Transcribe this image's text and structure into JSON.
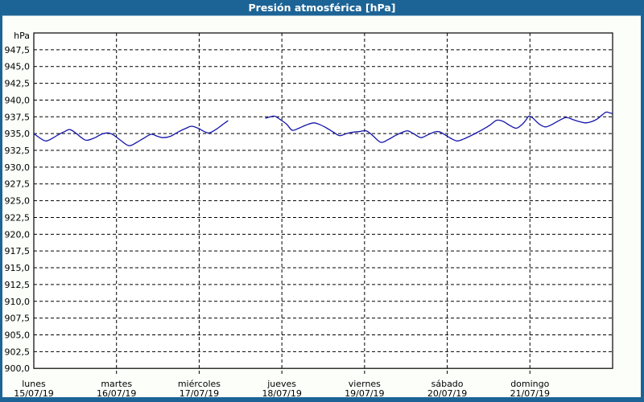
{
  "title": "Presión atmosférica [hPa]",
  "colors": {
    "titlebar": "#1D6496",
    "frame": "#1D6496",
    "panel_bg": "#FCFEFA",
    "plot_bg": "#FEFFFE",
    "grid": "#000000",
    "line": "#1414AA",
    "title_text": "#FFFFFF",
    "label_text": "#000000"
  },
  "chart_data": {
    "type": "line",
    "title": "Presión atmosférica [hPa]",
    "ylabel": "hPa",
    "ylim": [
      900,
      950
    ],
    "ytick_step": 2.5,
    "ytick_labels": [
      "947,5",
      "945,0",
      "942,5",
      "940,0",
      "937,5",
      "935,0",
      "932,5",
      "930,0",
      "927,5",
      "925,0",
      "922,5",
      "920,0",
      "917,5",
      "915,0",
      "912,5",
      "910,0",
      "907,5",
      "905,0",
      "902,5",
      "900,0"
    ],
    "xlim": [
      0,
      168
    ],
    "x_unit": "hours from lunes 00:00",
    "grid": "dashed",
    "legend_position": "none",
    "x_days": [
      {
        "name": "lunes",
        "date": "15/07/19"
      },
      {
        "name": "martes",
        "date": "16/07/19"
      },
      {
        "name": "miércoles",
        "date": "17/07/19"
      },
      {
        "name": "jueves",
        "date": "18/07/19"
      },
      {
        "name": "viernes",
        "date": "19/07/19"
      },
      {
        "name": "sábado",
        "date": "20/07/19"
      },
      {
        "name": "domingo",
        "date": "21/07/19"
      }
    ],
    "series": [
      {
        "name": "presión atmosférica",
        "color": "#1414AA",
        "unit": "hPa",
        "segments": [
          [
            [
              0,
              935.0
            ],
            [
              1.9,
              934.3
            ],
            [
              3.5,
              933.9
            ],
            [
              5.4,
              934.3
            ],
            [
              7,
              934.8
            ],
            [
              8.9,
              935.3
            ],
            [
              10.5,
              935.6
            ],
            [
              12.4,
              935.0
            ],
            [
              13.8,
              934.4
            ],
            [
              15.4,
              934.0
            ],
            [
              17.8,
              934.4
            ],
            [
              19.6,
              934.9
            ],
            [
              21.3,
              935.1
            ],
            [
              22.4,
              935.0
            ],
            [
              23.4,
              934.7
            ],
            [
              25.2,
              934.0
            ],
            [
              27.6,
              933.2
            ],
            [
              29.9,
              933.7
            ],
            [
              32.2,
              934.4
            ],
            [
              34.1,
              934.9
            ],
            [
              35.9,
              934.6
            ],
            [
              37.6,
              934.4
            ],
            [
              39.7,
              934.6
            ],
            [
              42.1,
              935.3
            ],
            [
              44.2,
              935.8
            ],
            [
              45.8,
              936.1
            ],
            [
              47.7,
              935.8
            ],
            [
              49.5,
              935.3
            ],
            [
              50.9,
              935.1
            ],
            [
              52.8,
              935.6
            ],
            [
              54.7,
              936.3
            ],
            [
              56.3,
              936.9
            ]
          ],
          [
            [
              67.3,
              937.3
            ],
            [
              68.7,
              937.5
            ],
            [
              69.9,
              937.6
            ],
            [
              71.5,
              937.1
            ],
            [
              73.4,
              936.4
            ],
            [
              75,
              935.5
            ],
            [
              76.9,
              935.8
            ],
            [
              79.2,
              936.3
            ],
            [
              81.3,
              936.6
            ],
            [
              83.2,
              936.3
            ],
            [
              85.1,
              935.8
            ],
            [
              87,
              935.2
            ],
            [
              88.8,
              934.7
            ],
            [
              90.7,
              935.0
            ],
            [
              92.5,
              935.2
            ],
            [
              94.4,
              935.3
            ],
            [
              96.5,
              935.4
            ],
            [
              98.4,
              934.7
            ],
            [
              100.7,
              933.7
            ],
            [
              102.8,
              934.1
            ],
            [
              104.9,
              934.7
            ],
            [
              107,
              935.2
            ],
            [
              108.6,
              935.4
            ],
            [
              110.5,
              934.9
            ],
            [
              112.4,
              934.4
            ],
            [
              114.3,
              934.8
            ],
            [
              116.1,
              935.2
            ],
            [
              117.5,
              935.3
            ],
            [
              119.1,
              934.9
            ],
            [
              121,
              934.3
            ],
            [
              122.9,
              933.9
            ],
            [
              124.8,
              934.2
            ],
            [
              126.9,
              934.7
            ],
            [
              128.8,
              935.2
            ],
            [
              130.6,
              935.7
            ],
            [
              132.5,
              936.3
            ],
            [
              134.4,
              937.0
            ],
            [
              136.3,
              936.8
            ],
            [
              138.2,
              936.2
            ],
            [
              140,
              935.8
            ],
            [
              141.6,
              936.3
            ],
            [
              142.8,
              937.0
            ],
            [
              143.7,
              937.6
            ],
            [
              144.9,
              937.3
            ],
            [
              146.5,
              936.5
            ],
            [
              148.4,
              936.0
            ],
            [
              150.2,
              936.3
            ],
            [
              152.3,
              936.9
            ],
            [
              154.5,
              937.4
            ],
            [
              156.4,
              937.1
            ],
            [
              158.2,
              936.8
            ],
            [
              160.1,
              936.6
            ],
            [
              162,
              936.8
            ],
            [
              163.6,
              937.2
            ],
            [
              165,
              937.8
            ],
            [
              166.1,
              938.2
            ],
            [
              167.1,
              938.1
            ],
            [
              167.8,
              938.0
            ]
          ]
        ]
      }
    ]
  }
}
